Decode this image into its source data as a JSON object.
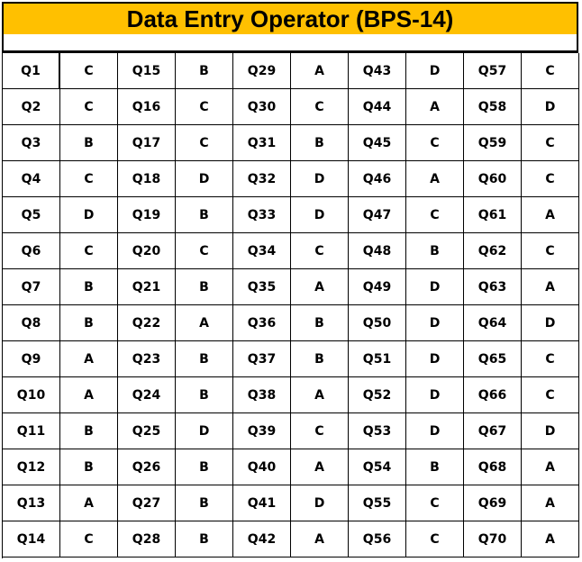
{
  "header": {
    "title": "Data Entry Operator (BPS-14)"
  },
  "table": {
    "rows": [
      [
        "Q1",
        "C",
        "Q15",
        "B",
        "Q29",
        "A",
        "Q43",
        "D",
        "Q57",
        "C"
      ],
      [
        "Q2",
        "C",
        "Q16",
        "C",
        "Q30",
        "C",
        "Q44",
        "A",
        "Q58",
        "D"
      ],
      [
        "Q3",
        "B",
        "Q17",
        "C",
        "Q31",
        "B",
        "Q45",
        "C",
        "Q59",
        "C"
      ],
      [
        "Q4",
        "C",
        "Q18",
        "D",
        "Q32",
        "D",
        "Q46",
        "A",
        "Q60",
        "C"
      ],
      [
        "Q5",
        "D",
        "Q19",
        "B",
        "Q33",
        "D",
        "Q47",
        "C",
        "Q61",
        "A"
      ],
      [
        "Q6",
        "C",
        "Q20",
        "C",
        "Q34",
        "C",
        "Q48",
        "B",
        "Q62",
        "C"
      ],
      [
        "Q7",
        "B",
        "Q21",
        "B",
        "Q35",
        "A",
        "Q49",
        "D",
        "Q63",
        "A"
      ],
      [
        "Q8",
        "B",
        "Q22",
        "A",
        "Q36",
        "B",
        "Q50",
        "D",
        "Q64",
        "D"
      ],
      [
        "Q9",
        "A",
        "Q23",
        "B",
        "Q37",
        "B",
        "Q51",
        "D",
        "Q65",
        "C"
      ],
      [
        "Q10",
        "A",
        "Q24",
        "B",
        "Q38",
        "A",
        "Q52",
        "D",
        "Q66",
        "C"
      ],
      [
        "Q11",
        "B",
        "Q25",
        "D",
        "Q39",
        "C",
        "Q53",
        "D",
        "Q67",
        "D"
      ],
      [
        "Q12",
        "B",
        "Q26",
        "B",
        "Q40",
        "A",
        "Q54",
        "B",
        "Q68",
        "A"
      ],
      [
        "Q13",
        "A",
        "Q27",
        "B",
        "Q41",
        "D",
        "Q55",
        "C",
        "Q69",
        "A"
      ],
      [
        "Q14",
        "C",
        "Q28",
        "B",
        "Q42",
        "A",
        "Q56",
        "C",
        "Q70",
        "A"
      ]
    ]
  }
}
